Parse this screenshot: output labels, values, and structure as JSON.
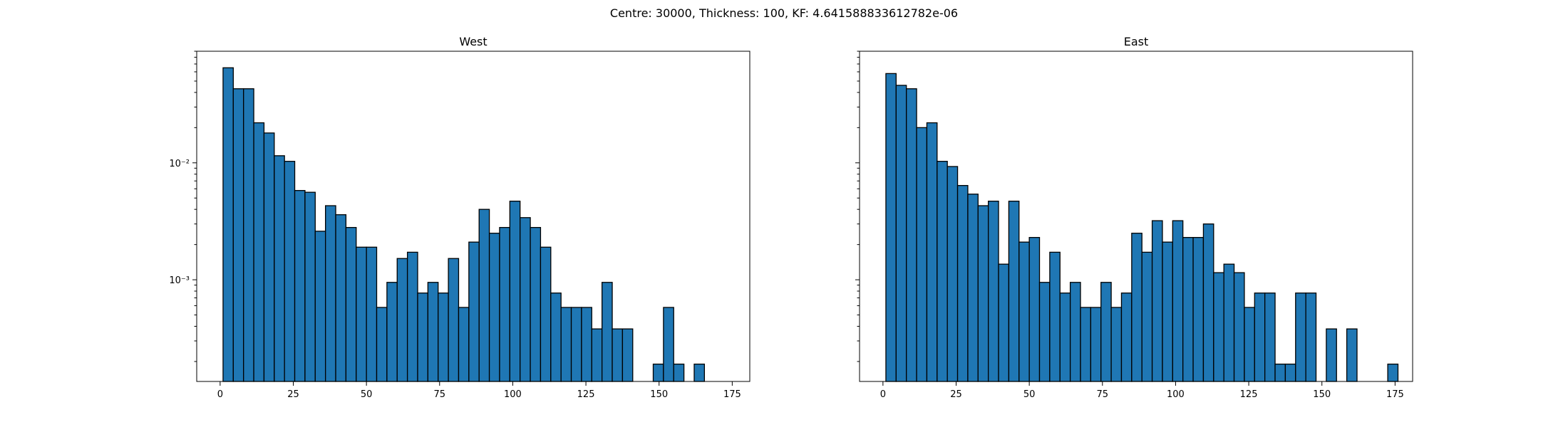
{
  "suptitle": "Centre: 30000, Thickness: 100, KF: 4.641588833612782e-06",
  "colors": {
    "bar_fill": "#1f77b4",
    "bar_edge": "#000000"
  },
  "chart_data": [
    {
      "type": "bar",
      "title": "West",
      "yscale": "log",
      "xlim": [
        -8,
        181
      ],
      "ylim": [
        0.000135,
        0.09
      ],
      "xticks": [
        0,
        25,
        50,
        75,
        100,
        125,
        150,
        175
      ],
      "xtick_labels": [
        "0",
        "25",
        "50",
        "75",
        "100",
        "125",
        "150",
        "175"
      ],
      "yticks": [
        0.001,
        0.01
      ],
      "ytick_labels": [
        "10⁻³",
        "10⁻²"
      ],
      "show_y_labels": true,
      "bin_start": 1,
      "bin_width": 3.5,
      "values": [
        0.065,
        0.043,
        0.043,
        0.022,
        0.018,
        0.0115,
        0.0103,
        0.0058,
        0.0056,
        0.0026,
        0.0043,
        0.0036,
        0.0028,
        0.0019,
        0.0019,
        0.00058,
        0.00095,
        0.00152,
        0.00172,
        0.00077,
        0.00095,
        0.00077,
        0.00152,
        0.00058,
        0.0021,
        0.004,
        0.0025,
        0.0028,
        0.0047,
        0.0034,
        0.0028,
        0.0019,
        0.00077,
        0.00058,
        0.00058,
        0.00058,
        0.00038,
        0.00095,
        0.00038,
        0.00038,
        0,
        0,
        0.00019,
        0.00058,
        0.00019,
        0,
        0.00019,
        0,
        0,
        0
      ]
    },
    {
      "type": "bar",
      "title": "East",
      "yscale": "log",
      "xlim": [
        -8,
        181
      ],
      "ylim": [
        0.000135,
        0.09
      ],
      "xticks": [
        0,
        25,
        50,
        75,
        100,
        125,
        150,
        175
      ],
      "xtick_labels": [
        "0",
        "25",
        "50",
        "75",
        "100",
        "125",
        "150",
        "175"
      ],
      "yticks": [
        0.001,
        0.01
      ],
      "ytick_labels": [
        "10⁻³",
        "10⁻²"
      ],
      "show_y_labels": false,
      "bin_start": 1,
      "bin_width": 3.5,
      "values": [
        0.058,
        0.046,
        0.043,
        0.02,
        0.022,
        0.0103,
        0.0093,
        0.0064,
        0.0054,
        0.0043,
        0.0047,
        0.00136,
        0.0047,
        0.0021,
        0.0023,
        0.00095,
        0.00172,
        0.00077,
        0.00095,
        0.00058,
        0.00058,
        0.00095,
        0.00058,
        0.00077,
        0.0025,
        0.00172,
        0.0032,
        0.0021,
        0.0032,
        0.0023,
        0.0023,
        0.003,
        0.00115,
        0.00136,
        0.00115,
        0.00058,
        0.00077,
        0.00077,
        0.00019,
        0.00019,
        0.00077,
        0.00077,
        0,
        0.00038,
        0,
        0.00038,
        0,
        0,
        0,
        0.00019
      ]
    }
  ]
}
